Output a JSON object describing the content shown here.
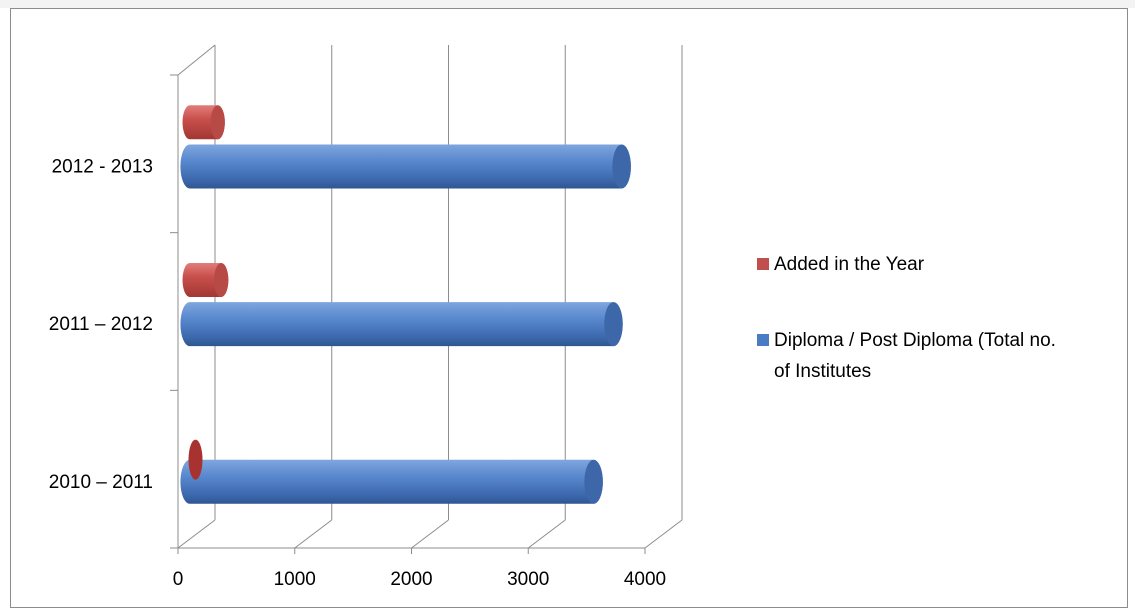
{
  "chart_data": {
    "type": "bar",
    "orientation": "horizontal",
    "style": "3d-cylinder",
    "categories": [
      "2010 – 2011",
      "2011 – 2012",
      "2012 - 2013"
    ],
    "series": [
      {
        "name": "Diploma / Post Diploma (Total no. of Institutes",
        "values": [
          3360,
          3530,
          3600
        ],
        "color": "#4a7cc4"
      },
      {
        "name": "Added in the Year",
        "values": [
          0,
          170,
          140
        ],
        "color": "#c0504d"
      }
    ],
    "xlim": [
      0,
      4000
    ],
    "xticks": [
      "0",
      "1000",
      "2000",
      "3000",
      "4000"
    ],
    "legend_position": "right",
    "grid": true,
    "title": "",
    "xlabel": "",
    "ylabel": ""
  },
  "legend": {
    "items": [
      {
        "label": "Added in the Year",
        "color": "#c0504d"
      },
      {
        "label_line1": "Diploma / Post Diploma (Total no.",
        "label_line2": "of Institutes",
        "color": "#4a7cc4"
      }
    ]
  }
}
